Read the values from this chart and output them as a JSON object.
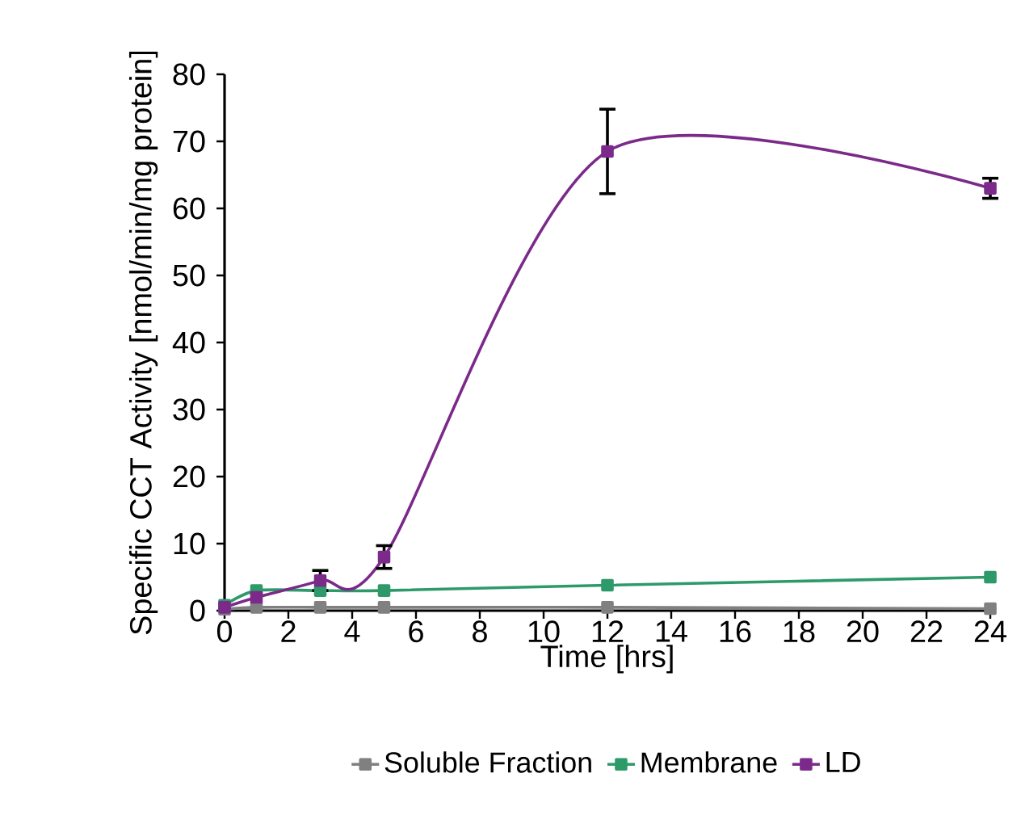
{
  "chart_data": {
    "type": "line",
    "xlabel": "Time [hrs]",
    "ylabel": "Specific CCT Activity [nmol/min/mg protein]",
    "x": [
      0,
      1,
      3,
      5,
      12,
      24
    ],
    "series": [
      {
        "name": "Soluble Fraction",
        "color": "#808080",
        "values": [
          0.2,
          0.5,
          0.5,
          0.5,
          0.5,
          0.3
        ]
      },
      {
        "name": "Membrane",
        "color": "#2e9a6a",
        "values": [
          0.8,
          3,
          3,
          3,
          3.8,
          5
        ]
      },
      {
        "name": "LD",
        "color": "#7b2a8a",
        "values": [
          0.5,
          2,
          4.5,
          8,
          68.5,
          63
        ],
        "errors": [
          null,
          null,
          1.5,
          1.7,
          6.3,
          1.5
        ]
      }
    ],
    "xlim": [
      0,
      24
    ],
    "xticks": [
      0,
      2,
      4,
      6,
      8,
      10,
      12,
      14,
      16,
      18,
      20,
      22,
      24
    ],
    "ylim": [
      0,
      80
    ],
    "yticks": [
      0,
      10,
      20,
      30,
      40,
      50,
      60,
      70,
      80
    ],
    "marker": "square",
    "legend": "bottom",
    "grid": false
  }
}
